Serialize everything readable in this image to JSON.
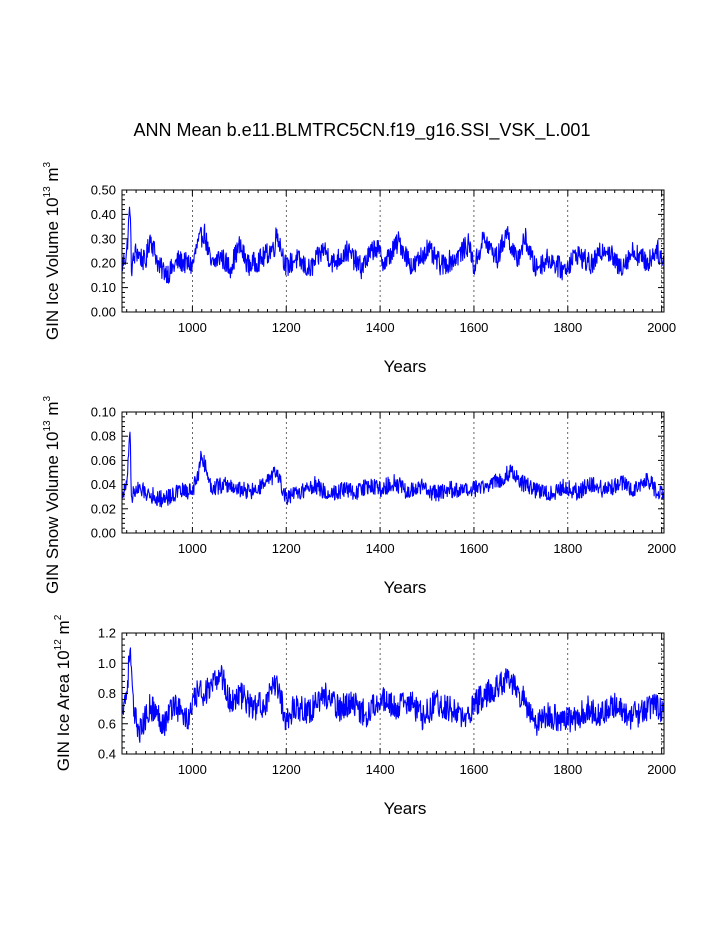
{
  "title": "ANN Mean b.e11.BLMTRC5CN.f19_g16.SSI_VSK_L.001",
  "colors": {
    "series": "#0000ff",
    "axis": "#000000",
    "grid": "#000000"
  },
  "chart_data": [
    {
      "type": "line",
      "title": "",
      "xlabel": "Years",
      "ylabel_parts": {
        "pre": "GIN Ice Volume 10",
        "exp": "13",
        "unit": " m",
        "unit_exp": "3"
      },
      "xlim": [
        850,
        2005
      ],
      "ylim": [
        0.0,
        0.5
      ],
      "xticks": [
        1000,
        1200,
        1400,
        1600,
        1800,
        2000
      ],
      "xtick_labels": [
        "1000",
        "1200",
        "1400",
        "1600",
        "1800",
        "2000"
      ],
      "yticks": [
        0.0,
        0.1,
        0.2,
        0.3,
        0.4,
        0.5
      ],
      "ytick_labels": [
        "0.00",
        "0.10",
        "0.20",
        "0.30",
        "0.40",
        "0.50"
      ],
      "vertical_grid": "dashed at x ticks",
      "series_color": "#0000ff",
      "x": [
        850,
        860,
        867,
        870,
        880,
        900,
        910,
        930,
        950,
        970,
        1000,
        1010,
        1025,
        1040,
        1060,
        1080,
        1100,
        1120,
        1150,
        1175,
        1180,
        1200,
        1220,
        1250,
        1280,
        1300,
        1330,
        1360,
        1390,
        1410,
        1440,
        1470,
        1500,
        1530,
        1560,
        1590,
        1600,
        1620,
        1650,
        1670,
        1690,
        1710,
        1730,
        1760,
        1790,
        1820,
        1850,
        1880,
        1910,
        1940,
        1970,
        1990,
        2005
      ],
      "values": [
        0.19,
        0.24,
        0.44,
        0.18,
        0.25,
        0.2,
        0.31,
        0.18,
        0.16,
        0.21,
        0.19,
        0.27,
        0.33,
        0.19,
        0.23,
        0.18,
        0.27,
        0.19,
        0.22,
        0.27,
        0.33,
        0.18,
        0.22,
        0.17,
        0.26,
        0.2,
        0.25,
        0.18,
        0.27,
        0.2,
        0.29,
        0.18,
        0.26,
        0.19,
        0.22,
        0.28,
        0.18,
        0.3,
        0.22,
        0.33,
        0.21,
        0.3,
        0.18,
        0.22,
        0.17,
        0.24,
        0.19,
        0.27,
        0.18,
        0.25,
        0.2,
        0.26,
        0.19
      ],
      "noise_amplitude": 0.045,
      "range_min": 0.09,
      "range_max": 0.44
    },
    {
      "type": "line",
      "title": "",
      "xlabel": "Years",
      "ylabel_parts": {
        "pre": "GIN Snow Volume 10",
        "exp": "13",
        "unit": " m",
        "unit_exp": "3"
      },
      "xlim": [
        850,
        2005
      ],
      "ylim": [
        0.0,
        0.1
      ],
      "xticks": [
        1000,
        1200,
        1400,
        1600,
        1800,
        2000
      ],
      "xtick_labels": [
        "1000",
        "1200",
        "1400",
        "1600",
        "1800",
        "2000"
      ],
      "yticks": [
        0.0,
        0.02,
        0.04,
        0.06,
        0.08,
        0.1
      ],
      "ytick_labels": [
        "0.00",
        "0.02",
        "0.04",
        "0.06",
        "0.08",
        "0.10"
      ],
      "vertical_grid": "dashed at x ticks",
      "series_color": "#0000ff",
      "x": [
        850,
        860,
        867,
        870,
        880,
        900,
        930,
        950,
        970,
        1000,
        1010,
        1020,
        1040,
        1070,
        1100,
        1130,
        1160,
        1180,
        1200,
        1230,
        1260,
        1290,
        1320,
        1350,
        1380,
        1400,
        1430,
        1460,
        1490,
        1520,
        1550,
        1580,
        1600,
        1630,
        1660,
        1680,
        1700,
        1730,
        1760,
        1790,
        1820,
        1850,
        1880,
        1910,
        1940,
        1970,
        1990,
        2005
      ],
      "values": [
        0.033,
        0.038,
        0.087,
        0.03,
        0.036,
        0.034,
        0.028,
        0.03,
        0.034,
        0.035,
        0.045,
        0.065,
        0.038,
        0.04,
        0.036,
        0.034,
        0.042,
        0.05,
        0.028,
        0.034,
        0.04,
        0.032,
        0.036,
        0.034,
        0.04,
        0.036,
        0.042,
        0.034,
        0.038,
        0.032,
        0.036,
        0.034,
        0.036,
        0.04,
        0.045,
        0.052,
        0.042,
        0.036,
        0.032,
        0.038,
        0.034,
        0.04,
        0.035,
        0.042,
        0.036,
        0.045,
        0.033,
        0.035
      ],
      "noise_amplitude": 0.007,
      "range_min": 0.017,
      "range_max": 0.087
    },
    {
      "type": "line",
      "title": "",
      "xlabel": "Years",
      "ylabel_parts": {
        "pre": "GIN Ice Area 10",
        "exp": "12",
        "unit": " m",
        "unit_exp": "2"
      },
      "xlim": [
        850,
        2005
      ],
      "ylim": [
        0.4,
        1.2
      ],
      "xticks": [
        1000,
        1200,
        1400,
        1600,
        1800,
        2000
      ],
      "xtick_labels": [
        "1000",
        "1200",
        "1400",
        "1600",
        "1800",
        "2000"
      ],
      "yticks": [
        0.4,
        0.6,
        0.8,
        1.0,
        1.2
      ],
      "ytick_labels": [
        "0.4",
        "0.6",
        "0.8",
        "1.0",
        "1.2"
      ],
      "vertical_grid": "dashed at x ticks",
      "series_color": "#0000ff",
      "x": [
        850,
        860,
        867,
        875,
        890,
        910,
        940,
        960,
        990,
        1010,
        1040,
        1060,
        1080,
        1100,
        1130,
        1160,
        1180,
        1200,
        1220,
        1250,
        1280,
        1310,
        1340,
        1370,
        1400,
        1430,
        1460,
        1490,
        1520,
        1550,
        1580,
        1610,
        1640,
        1670,
        1690,
        1710,
        1730,
        1750,
        1780,
        1810,
        1840,
        1870,
        1900,
        1930,
        1960,
        1990,
        2005
      ],
      "values": [
        0.72,
        0.8,
        1.1,
        0.65,
        0.55,
        0.72,
        0.6,
        0.74,
        0.62,
        0.8,
        0.82,
        0.95,
        0.74,
        0.8,
        0.7,
        0.75,
        0.88,
        0.62,
        0.72,
        0.68,
        0.8,
        0.7,
        0.74,
        0.66,
        0.78,
        0.7,
        0.75,
        0.65,
        0.74,
        0.7,
        0.62,
        0.76,
        0.82,
        0.9,
        0.82,
        0.75,
        0.58,
        0.66,
        0.64,
        0.62,
        0.7,
        0.66,
        0.72,
        0.64,
        0.68,
        0.72,
        0.66
      ],
      "noise_amplitude": 0.09,
      "range_min": 0.4,
      "range_max": 1.11
    }
  ]
}
